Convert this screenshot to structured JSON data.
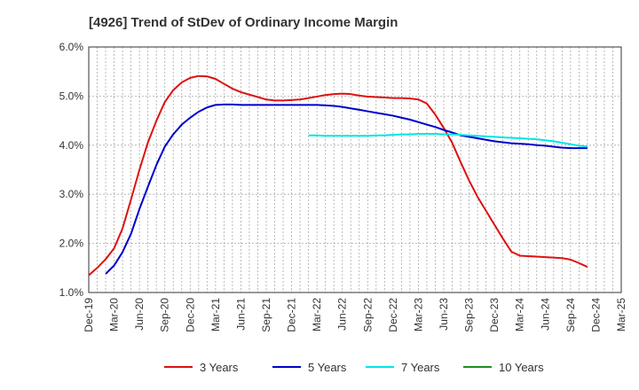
{
  "chart_data": {
    "type": "line",
    "title": "[4926]  Trend of StDev of Ordinary Income Margin",
    "xlabel": "",
    "ylabel": "",
    "x": [
      "Dec-19",
      "Mar-20",
      "Jun-20",
      "Sep-20",
      "Dec-20",
      "Mar-21",
      "Jun-21",
      "Sep-21",
      "Dec-21",
      "Mar-22",
      "Jun-22",
      "Sep-22",
      "Dec-22",
      "Mar-23",
      "Jun-23",
      "Sep-23",
      "Dec-23",
      "Mar-24",
      "Jun-24",
      "Sep-24",
      "Dec-24",
      "Mar-25"
    ],
    "ylim": [
      1.0,
      6.0
    ],
    "yticks": [
      "1.0%",
      "2.0%",
      "3.0%",
      "4.0%",
      "5.0%",
      "6.0%"
    ],
    "grid": true,
    "legend_position": "bottom",
    "series": [
      {
        "name": "3 Years",
        "color": "#dd1111",
        "points": [
          [
            0,
            1.35
          ],
          [
            0.33,
            1.5
          ],
          [
            0.67,
            1.68
          ],
          [
            1,
            1.9
          ],
          [
            1.33,
            2.3
          ],
          [
            1.67,
            2.9
          ],
          [
            2,
            3.5
          ],
          [
            2.33,
            4.05
          ],
          [
            2.67,
            4.5
          ],
          [
            3,
            4.88
          ],
          [
            3.33,
            5.12
          ],
          [
            3.67,
            5.28
          ],
          [
            4,
            5.37
          ],
          [
            4.33,
            5.41
          ],
          [
            4.67,
            5.4
          ],
          [
            5,
            5.35
          ],
          [
            5.33,
            5.25
          ],
          [
            5.67,
            5.15
          ],
          [
            6,
            5.08
          ],
          [
            6.33,
            5.03
          ],
          [
            6.67,
            4.98
          ],
          [
            7,
            4.93
          ],
          [
            7.33,
            4.91
          ],
          [
            7.67,
            4.91
          ],
          [
            8,
            4.92
          ],
          [
            8.33,
            4.93
          ],
          [
            8.67,
            4.96
          ],
          [
            9,
            4.99
          ],
          [
            9.33,
            5.02
          ],
          [
            9.67,
            5.04
          ],
          [
            10,
            5.05
          ],
          [
            10.33,
            5.04
          ],
          [
            10.67,
            5.01
          ],
          [
            11,
            4.99
          ],
          [
            11.33,
            4.98
          ],
          [
            11.67,
            4.97
          ],
          [
            12,
            4.96
          ],
          [
            12.33,
            4.96
          ],
          [
            12.67,
            4.95
          ],
          [
            13,
            4.93
          ],
          [
            13.33,
            4.85
          ],
          [
            13.67,
            4.62
          ],
          [
            14,
            4.35
          ],
          [
            14.33,
            4.05
          ],
          [
            14.67,
            3.65
          ],
          [
            15,
            3.28
          ],
          [
            15.33,
            2.95
          ],
          [
            15.67,
            2.66
          ],
          [
            16,
            2.38
          ],
          [
            16.33,
            2.1
          ],
          [
            16.67,
            1.83
          ],
          [
            17,
            1.75
          ],
          [
            17.33,
            1.74
          ],
          [
            17.67,
            1.73
          ],
          [
            18,
            1.72
          ],
          [
            18.33,
            1.71
          ],
          [
            18.67,
            1.7
          ],
          [
            19,
            1.67
          ],
          [
            19.33,
            1.6
          ],
          [
            19.67,
            1.52
          ]
        ]
      },
      {
        "name": "5 Years",
        "color": "#0000cc",
        "points": [
          [
            0.67,
            1.38
          ],
          [
            1,
            1.55
          ],
          [
            1.33,
            1.82
          ],
          [
            1.67,
            2.2
          ],
          [
            2,
            2.7
          ],
          [
            2.33,
            3.15
          ],
          [
            2.67,
            3.6
          ],
          [
            3,
            3.97
          ],
          [
            3.33,
            4.22
          ],
          [
            3.67,
            4.42
          ],
          [
            4,
            4.56
          ],
          [
            4.33,
            4.68
          ],
          [
            4.67,
            4.77
          ],
          [
            5,
            4.82
          ],
          [
            5.33,
            4.83
          ],
          [
            5.67,
            4.83
          ],
          [
            6,
            4.82
          ],
          [
            6.33,
            4.82
          ],
          [
            6.67,
            4.82
          ],
          [
            7,
            4.82
          ],
          [
            7.33,
            4.82
          ],
          [
            7.67,
            4.82
          ],
          [
            8,
            4.82
          ],
          [
            8.33,
            4.82
          ],
          [
            8.67,
            4.82
          ],
          [
            9,
            4.82
          ],
          [
            9.33,
            4.81
          ],
          [
            9.67,
            4.8
          ],
          [
            10,
            4.78
          ],
          [
            10.33,
            4.75
          ],
          [
            10.67,
            4.72
          ],
          [
            11,
            4.69
          ],
          [
            11.33,
            4.66
          ],
          [
            11.67,
            4.63
          ],
          [
            12,
            4.6
          ],
          [
            12.33,
            4.56
          ],
          [
            12.67,
            4.52
          ],
          [
            13,
            4.47
          ],
          [
            13.33,
            4.42
          ],
          [
            13.67,
            4.37
          ],
          [
            14,
            4.31
          ],
          [
            14.33,
            4.26
          ],
          [
            14.67,
            4.2
          ],
          [
            15,
            4.17
          ],
          [
            15.33,
            4.14
          ],
          [
            15.67,
            4.11
          ],
          [
            16,
            4.08
          ],
          [
            16.33,
            4.06
          ],
          [
            16.67,
            4.04
          ],
          [
            17,
            4.03
          ],
          [
            17.33,
            4.02
          ],
          [
            17.67,
            4.0
          ],
          [
            18,
            3.99
          ],
          [
            18.33,
            3.97
          ],
          [
            18.67,
            3.95
          ],
          [
            19,
            3.94
          ],
          [
            19.33,
            3.94
          ],
          [
            19.67,
            3.94
          ]
        ]
      },
      {
        "name": "7 Years",
        "color": "#00e5e5",
        "points": [
          [
            8.67,
            4.2
          ],
          [
            9,
            4.2
          ],
          [
            9.33,
            4.19
          ],
          [
            9.67,
            4.19
          ],
          [
            10,
            4.19
          ],
          [
            10.33,
            4.19
          ],
          [
            10.67,
            4.19
          ],
          [
            11,
            4.19
          ],
          [
            11.33,
            4.2
          ],
          [
            11.67,
            4.2
          ],
          [
            12,
            4.21
          ],
          [
            12.33,
            4.22
          ],
          [
            12.67,
            4.22
          ],
          [
            13,
            4.23
          ],
          [
            13.33,
            4.23
          ],
          [
            13.67,
            4.23
          ],
          [
            14,
            4.22
          ],
          [
            14.33,
            4.22
          ],
          [
            14.67,
            4.21
          ],
          [
            15,
            4.2
          ],
          [
            15.33,
            4.19
          ],
          [
            15.67,
            4.18
          ],
          [
            16,
            4.17
          ],
          [
            16.33,
            4.16
          ],
          [
            16.67,
            4.15
          ],
          [
            17,
            4.14
          ],
          [
            17.33,
            4.13
          ],
          [
            17.67,
            4.12
          ],
          [
            18,
            4.1
          ],
          [
            18.33,
            4.08
          ],
          [
            18.67,
            4.05
          ],
          [
            19,
            4.02
          ],
          [
            19.33,
            3.99
          ],
          [
            19.67,
            3.97
          ]
        ]
      },
      {
        "name": "10 Years",
        "color": "#228b22",
        "points": []
      }
    ]
  }
}
